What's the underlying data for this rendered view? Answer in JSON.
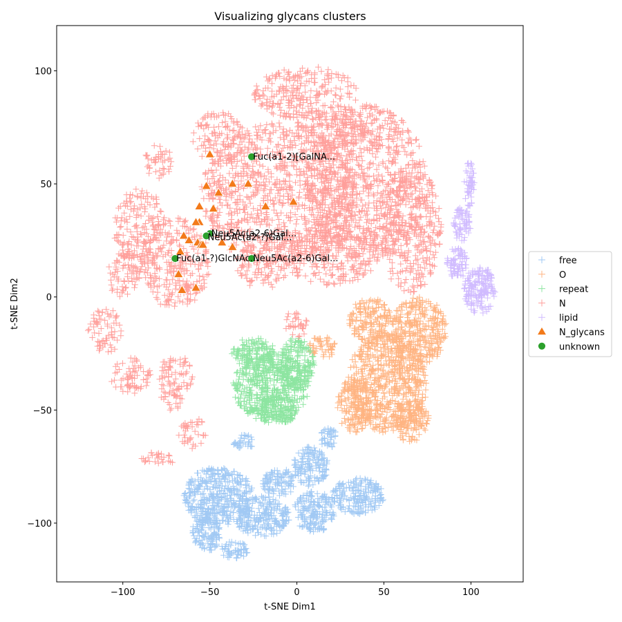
{
  "chart_data": {
    "type": "scatter",
    "title": "Visualizing glycans clusters",
    "xlabel": "t-SNE Dim1",
    "ylabel": "t-SNE Dim2",
    "xlim": [
      -138,
      130
    ],
    "ylim": [
      -126,
      120
    ],
    "xticks": [
      -100,
      -50,
      0,
      50,
      100
    ],
    "yticks": [
      -100,
      -50,
      0,
      50,
      100
    ],
    "xtick_labels": [
      "−100",
      "−50",
      "0",
      "50",
      "100"
    ],
    "ytick_labels": [
      "−100",
      "−50",
      "0",
      "50",
      "100"
    ],
    "grid": false,
    "legend_position": "center right (outside plot)",
    "series": [
      {
        "name": "free",
        "marker": "plus",
        "color": "#a1c9f4",
        "approx_count": 1500,
        "regions": [
          {
            "cx": -45,
            "cy": -88,
            "rx": 20,
            "ry": 13
          },
          {
            "cx": -20,
            "cy": -97,
            "rx": 16,
            "ry": 9
          },
          {
            "cx": 10,
            "cy": -95,
            "rx": 12,
            "ry": 9
          },
          {
            "cx": 8,
            "cy": -75,
            "rx": 10,
            "ry": 9
          },
          {
            "cx": 18,
            "cy": -62,
            "rx": 5,
            "ry": 5
          },
          {
            "cx": 35,
            "cy": -88,
            "rx": 15,
            "ry": 8
          },
          {
            "cx": -52,
            "cy": -104,
            "rx": 8,
            "ry": 9
          },
          {
            "cx": -36,
            "cy": -112,
            "rx": 8,
            "ry": 4
          },
          {
            "cx": -30,
            "cy": -64,
            "rx": 7,
            "ry": 3
          },
          {
            "cx": -10,
            "cy": -82,
            "rx": 10,
            "ry": 6
          }
        ]
      },
      {
        "name": "O",
        "marker": "plus",
        "color": "#ffb482",
        "approx_count": 1500,
        "regions": [
          {
            "cx": 52,
            "cy": -38,
            "rx": 23,
            "ry": 22
          },
          {
            "cx": 70,
            "cy": -15,
            "rx": 16,
            "ry": 15
          },
          {
            "cx": 42,
            "cy": -10,
            "rx": 12,
            "ry": 10
          },
          {
            "cx": 65,
            "cy": -55,
            "rx": 11,
            "ry": 9
          },
          {
            "cx": 15,
            "cy": -22,
            "rx": 8,
            "ry": 5
          },
          {
            "cx": 33,
            "cy": -48,
            "rx": 10,
            "ry": 12
          }
        ]
      },
      {
        "name": "repeat",
        "marker": "plus",
        "color": "#8de5a1",
        "approx_count": 900,
        "regions": [
          {
            "cx": -15,
            "cy": -40,
            "rx": 22,
            "ry": 15
          },
          {
            "cx": -25,
            "cy": -25,
            "rx": 13,
            "ry": 7
          },
          {
            "cx": 0,
            "cy": -30,
            "rx": 10,
            "ry": 12
          },
          {
            "cx": -12,
            "cy": -50,
            "rx": 13,
            "ry": 6
          }
        ]
      },
      {
        "name": "N",
        "marker": "plus",
        "color": "#ff9f9b",
        "approx_count": 4000,
        "regions": [
          {
            "cx": -10,
            "cy": 45,
            "rx": 45,
            "ry": 32
          },
          {
            "cx": 40,
            "cy": 50,
            "rx": 35,
            "ry": 35
          },
          {
            "cx": 5,
            "cy": 90,
            "rx": 30,
            "ry": 12
          },
          {
            "cx": 65,
            "cy": 30,
            "rx": 18,
            "ry": 28
          },
          {
            "cx": -70,
            "cy": 15,
            "rx": 20,
            "ry": 20
          },
          {
            "cx": -90,
            "cy": 30,
            "rx": 15,
            "ry": 18
          },
          {
            "cx": -100,
            "cy": 10,
            "rx": 10,
            "ry": 10
          },
          {
            "cx": -80,
            "cy": 60,
            "rx": 8,
            "ry": 8
          },
          {
            "cx": -45,
            "cy": 70,
            "rx": 15,
            "ry": 12
          },
          {
            "cx": 20,
            "cy": 20,
            "rx": 30,
            "ry": 15
          },
          {
            "cx": -20,
            "cy": 15,
            "rx": 15,
            "ry": 12
          },
          {
            "cx": -110,
            "cy": -15,
            "rx": 10,
            "ry": 10
          },
          {
            "cx": -95,
            "cy": -35,
            "rx": 12,
            "ry": 8
          },
          {
            "cx": -70,
            "cy": -35,
            "rx": 10,
            "ry": 10
          },
          {
            "cx": -60,
            "cy": -60,
            "rx": 8,
            "ry": 7
          },
          {
            "cx": -80,
            "cy": -72,
            "rx": 10,
            "ry": 4
          },
          {
            "cx": -72,
            "cy": -45,
            "rx": 6,
            "ry": 6
          },
          {
            "cx": 20,
            "cy": 75,
            "rx": 20,
            "ry": 10
          },
          {
            "cx": 0,
            "cy": -12,
            "rx": 8,
            "ry": 6
          }
        ]
      },
      {
        "name": "lipid",
        "marker": "plus",
        "color": "#d0bbff",
        "approx_count": 350,
        "regions": [
          {
            "cx": 105,
            "cy": 3,
            "rx": 9,
            "ry": 11
          },
          {
            "cx": 92,
            "cy": 15,
            "rx": 6,
            "ry": 7
          },
          {
            "cx": 95,
            "cy": 32,
            "rx": 5,
            "ry": 8
          },
          {
            "cx": 99,
            "cy": 50,
            "rx": 3,
            "ry": 10
          }
        ]
      },
      {
        "name": "N_glycans",
        "marker": "triangle",
        "color": "#f37a1a",
        "points": [
          [
            -50,
            63
          ],
          [
            -52,
            49
          ],
          [
            -45,
            46
          ],
          [
            -37,
            50
          ],
          [
            -28,
            50
          ],
          [
            -18,
            40
          ],
          [
            -2,
            42
          ],
          [
            -56,
            40
          ],
          [
            -48,
            39
          ],
          [
            -56,
            33
          ],
          [
            -58,
            33
          ],
          [
            -65,
            27
          ],
          [
            -62,
            25
          ],
          [
            -57,
            24
          ],
          [
            -55,
            23
          ],
          [
            -54,
            23
          ],
          [
            -43,
            24
          ],
          [
            -37,
            22
          ],
          [
            -67,
            20
          ],
          [
            -68,
            10
          ],
          [
            -66,
            3
          ],
          [
            -58,
            4
          ]
        ]
      },
      {
        "name": "unknown",
        "marker": "circle",
        "color": "#2ca02c",
        "points": [
          [
            -26,
            62
          ],
          [
            -50,
            28
          ],
          [
            -52,
            27
          ],
          [
            -70,
            17
          ],
          [
            -26,
            17
          ]
        ]
      }
    ],
    "annotations": [
      {
        "text": "Fuc(a1-2)[GalNA...",
        "x": -26,
        "y": 62
      },
      {
        "text": "Neu5Ac(a2-6)Gal...",
        "x": -50,
        "y": 28
      },
      {
        "text": "Neu5Ac(a2-?)Gal...",
        "x": -52,
        "y": 26.3
      },
      {
        "text": "Fuc(a1-?)GlcNAc...",
        "x": -70,
        "y": 17
      },
      {
        "text": "Neu5Ac(a2-6)Gal...",
        "x": -26,
        "y": 17
      }
    ],
    "legend_entries": [
      "free",
      "O",
      "repeat",
      "N",
      "lipid",
      "N_glycans",
      "unknown"
    ]
  }
}
